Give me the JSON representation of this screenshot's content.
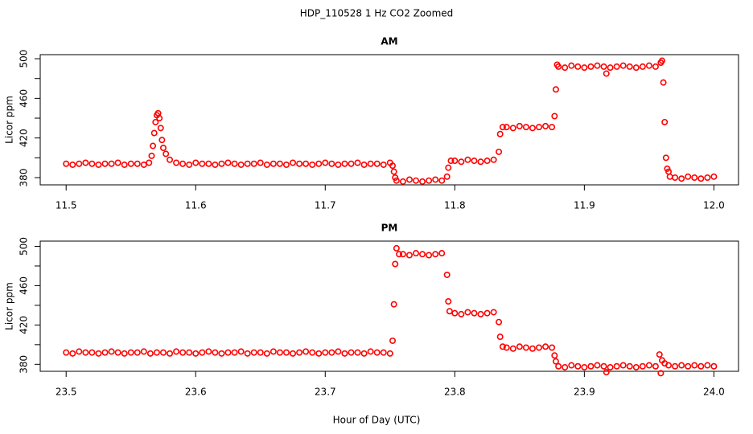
{
  "title": "HDP_110528  1 Hz CO2 Zoomed",
  "xlabel": "Hour of Day (UTC)",
  "chart_data": [
    {
      "type": "scatter",
      "title": "AM",
      "ylabel": "Licor ppm",
      "color": "#ff0000",
      "xlim": [
        11.48,
        12.019
      ],
      "ylim": [
        372.7,
        504.1
      ],
      "xticks": [
        11.5,
        11.6,
        11.7,
        11.8,
        11.9,
        {
          "value": 12,
          "label": "12.0"
        }
      ],
      "yticks": [
        380,
        420,
        460,
        500
      ],
      "yticks_minor": [
        400,
        440,
        480
      ],
      "x": [
        11.5,
        11.505,
        11.51,
        11.515,
        11.52,
        11.525,
        11.53,
        11.535,
        11.54,
        11.545,
        11.55,
        11.555,
        11.56,
        11.564,
        11.566,
        11.567,
        11.568,
        11.569,
        11.57,
        11.571,
        11.572,
        11.573,
        11.574,
        11.575,
        11.577,
        11.58,
        11.585,
        11.59,
        11.595,
        11.6,
        11.605,
        11.61,
        11.615,
        11.62,
        11.625,
        11.63,
        11.635,
        11.64,
        11.645,
        11.65,
        11.655,
        11.66,
        11.665,
        11.67,
        11.675,
        11.68,
        11.685,
        11.69,
        11.695,
        11.7,
        11.705,
        11.71,
        11.715,
        11.72,
        11.725,
        11.73,
        11.735,
        11.74,
        11.745,
        11.75,
        11.752,
        11.753,
        11.754,
        11.755,
        11.76,
        11.765,
        11.77,
        11.775,
        11.78,
        11.785,
        11.79,
        11.794,
        11.795,
        11.797,
        11.8,
        11.805,
        11.81,
        11.815,
        11.82,
        11.825,
        11.83,
        11.834,
        11.835,
        11.837,
        11.84,
        11.845,
        11.85,
        11.855,
        11.86,
        11.865,
        11.87,
        11.875,
        11.877,
        11.878,
        11.879,
        11.88,
        11.885,
        11.89,
        11.895,
        11.9,
        11.905,
        11.91,
        11.915,
        11.917,
        11.92,
        11.925,
        11.93,
        11.935,
        11.94,
        11.945,
        11.95,
        11.955,
        11.959,
        11.96,
        11.961,
        11.962,
        11.963,
        11.964,
        11.965,
        11.966,
        11.97,
        11.975,
        11.98,
        11.985,
        11.99,
        11.995,
        12.0
      ],
      "values": [
        394,
        393,
        394,
        395,
        394,
        393,
        394,
        394,
        395,
        393,
        394,
        394,
        393,
        395,
        402,
        412,
        425,
        436,
        443,
        445,
        440,
        430,
        418,
        410,
        404,
        398,
        395,
        394,
        393,
        395,
        394,
        394,
        393,
        394,
        395,
        394,
        393,
        394,
        394,
        395,
        393,
        394,
        394,
        393,
        395,
        394,
        394,
        393,
        394,
        395,
        394,
        393,
        394,
        394,
        395,
        393,
        394,
        394,
        393,
        395,
        392,
        386,
        380,
        377,
        376,
        378,
        377,
        376,
        377,
        378,
        377,
        381,
        390,
        397,
        397,
        396,
        398,
        397,
        396,
        397,
        398,
        406,
        424,
        431,
        431,
        430,
        432,
        431,
        430,
        431,
        432,
        431,
        442,
        469,
        494,
        492,
        491,
        493,
        492,
        491,
        492,
        493,
        492,
        485,
        491,
        492,
        493,
        492,
        491,
        492,
        493,
        492,
        496,
        498,
        476,
        436,
        400,
        389,
        386,
        381,
        380,
        379,
        381,
        380,
        379,
        380,
        381
      ]
    },
    {
      "type": "scatter",
      "title": "PM",
      "ylabel": "Licor ppm",
      "color": "#ff0000",
      "xlim": [
        23.48,
        24.019
      ],
      "ylim": [
        372.9,
        505.3
      ],
      "xticks": [
        23.5,
        23.6,
        23.7,
        23.8,
        23.9,
        {
          "value": 24,
          "label": "24.0"
        }
      ],
      "yticks": [
        380,
        420,
        460,
        500
      ],
      "yticks_minor": [
        400,
        440,
        480
      ],
      "x": [
        23.5,
        23.505,
        23.51,
        23.515,
        23.52,
        23.525,
        23.53,
        23.535,
        23.54,
        23.545,
        23.55,
        23.555,
        23.56,
        23.565,
        23.57,
        23.575,
        23.58,
        23.585,
        23.59,
        23.595,
        23.6,
        23.605,
        23.61,
        23.615,
        23.62,
        23.625,
        23.63,
        23.635,
        23.64,
        23.645,
        23.65,
        23.655,
        23.66,
        23.665,
        23.67,
        23.675,
        23.68,
        23.685,
        23.69,
        23.695,
        23.7,
        23.705,
        23.71,
        23.715,
        23.72,
        23.725,
        23.73,
        23.735,
        23.74,
        23.745,
        23.75,
        23.752,
        23.753,
        23.754,
        23.755,
        23.757,
        23.76,
        23.765,
        23.77,
        23.775,
        23.78,
        23.785,
        23.79,
        23.794,
        23.795,
        23.796,
        23.8,
        23.805,
        23.81,
        23.815,
        23.82,
        23.825,
        23.83,
        23.834,
        23.835,
        23.837,
        23.84,
        23.845,
        23.85,
        23.855,
        23.86,
        23.865,
        23.87,
        23.875,
        23.877,
        23.878,
        23.88,
        23.885,
        23.89,
        23.895,
        23.9,
        23.905,
        23.91,
        23.915,
        23.917,
        23.92,
        23.925,
        23.93,
        23.935,
        23.94,
        23.945,
        23.95,
        23.955,
        23.958,
        23.959,
        23.96,
        23.962,
        23.965,
        23.97,
        23.975,
        23.98,
        23.985,
        23.99,
        23.995,
        24.0
      ],
      "values": [
        392,
        391,
        393,
        392,
        392,
        391,
        392,
        393,
        392,
        391,
        392,
        392,
        393,
        391,
        392,
        392,
        391,
        393,
        392,
        392,
        391,
        392,
        393,
        392,
        391,
        392,
        392,
        393,
        391,
        392,
        392,
        391,
        393,
        392,
        392,
        391,
        392,
        393,
        392,
        391,
        392,
        392,
        393,
        391,
        392,
        392,
        391,
        393,
        392,
        392,
        391,
        404,
        441,
        482,
        498,
        492,
        492,
        491,
        493,
        492,
        491,
        492,
        493,
        471,
        444,
        434,
        432,
        431,
        433,
        432,
        431,
        432,
        433,
        423,
        408,
        398,
        397,
        396,
        398,
        397,
        396,
        397,
        398,
        397,
        389,
        383,
        378,
        377,
        379,
        378,
        377,
        378,
        379,
        378,
        372,
        377,
        378,
        379,
        378,
        377,
        378,
        379,
        378,
        390,
        371,
        384,
        381,
        379,
        378,
        379,
        378,
        379,
        378,
        379,
        378
      ]
    }
  ]
}
